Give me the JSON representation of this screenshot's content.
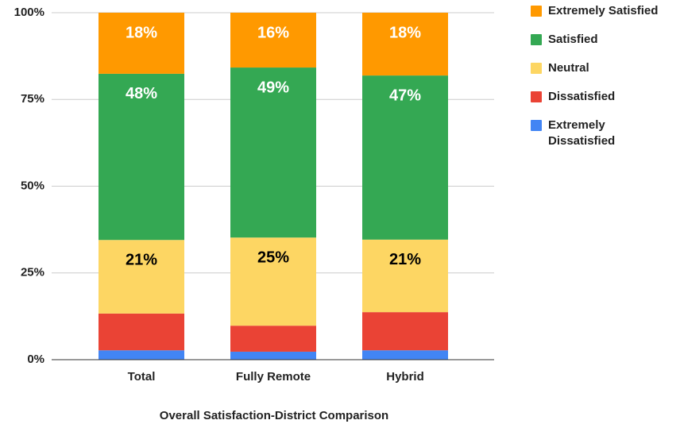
{
  "chart_data": {
    "type": "stacked_bar",
    "title": "Overall Satisfaction-District Comparison",
    "categories": [
      "Total",
      "Fully Remote",
      "Hybrid"
    ],
    "series": [
      {
        "name": "Extremely Dissatisfied",
        "color": "#4285f4",
        "values": [
          2.7,
          2.3,
          2.7
        ]
      },
      {
        "name": "Dissatisfied",
        "color": "#ea4335",
        "values": [
          10.6,
          7.5,
          11.0
        ]
      },
      {
        "name": "Neutral",
        "color": "#fdd663",
        "label_color": "#000000",
        "values": [
          21.2,
          25.4,
          20.9
        ],
        "value_labels": [
          "21%",
          "25%",
          "21%"
        ]
      },
      {
        "name": "Satisfied",
        "color": "#34a853",
        "label_color": "#ffffff",
        "values": [
          47.9,
          49.0,
          47.3
        ],
        "value_labels": [
          "48%",
          "49%",
          "47%"
        ]
      },
      {
        "name": "Extremely Satisfied",
        "color": "#ff9900",
        "label_color": "#ffffff",
        "values": [
          17.6,
          15.8,
          18.1
        ],
        "value_labels": [
          "18%",
          "16%",
          "18%"
        ]
      }
    ],
    "ylim": [
      0,
      100
    ],
    "yticks": [
      {
        "value": 0,
        "label": "0%"
      },
      {
        "value": 25,
        "label": "25%"
      },
      {
        "value": 50,
        "label": "50%"
      },
      {
        "value": 75,
        "label": "75%"
      },
      {
        "value": 100,
        "label": "100%"
      }
    ],
    "grid": true,
    "legend": "right"
  }
}
